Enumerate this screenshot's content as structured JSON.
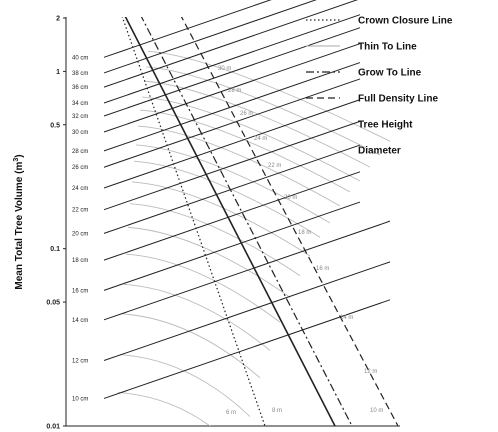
{
  "chart_data": {
    "type": "line",
    "title": "",
    "ylabel": "Mean Total Tree Volume (m³)",
    "ylabel_main": "Mean Total Tree Volume (m",
    "ylabel_sup": "3",
    "ylabel_close": ")",
    "yscale": "log",
    "ylim": [
      0.01,
      2
    ],
    "y_ticks": [
      {
        "value": 2,
        "label": "2"
      },
      {
        "value": 1,
        "label": "1"
      },
      {
        "value": 0.5,
        "label": "0.5"
      },
      {
        "value": 0.1,
        "label": "0.1"
      },
      {
        "value": 0.05,
        "label": "0.05"
      },
      {
        "value": 0.01,
        "label": "0.01"
      }
    ],
    "legend_position": "top-right",
    "legend": [
      {
        "label": "Crown Closure Line",
        "style": "dotted"
      },
      {
        "label": "Thin To Line",
        "style": "solid-light"
      },
      {
        "label": "Grow To Line",
        "style": "dash-dot"
      },
      {
        "label": "Full Density Line",
        "style": "dashed"
      },
      {
        "label": "Tree Height",
        "style": "none"
      },
      {
        "label": "Diameter",
        "style": "none"
      }
    ],
    "diameter_lines": [
      {
        "label": "10 cm",
        "value": 0.0143
      },
      {
        "label": "12 cm",
        "value": 0.0234
      },
      {
        "label": "14 cm",
        "value": 0.0397
      },
      {
        "label": "16 cm",
        "value": 0.0582
      },
      {
        "label": "18 cm",
        "value": 0.0862
      },
      {
        "label": "20 cm",
        "value": 0.122
      },
      {
        "label": "22 cm",
        "value": 0.166
      },
      {
        "label": "24 cm",
        "value": 0.22
      },
      {
        "label": "26 cm",
        "value": 0.288
      },
      {
        "label": "28 cm",
        "value": 0.356
      },
      {
        "label": "30 cm",
        "value": 0.455
      },
      {
        "label": "32 cm",
        "value": 0.56
      },
      {
        "label": "34 cm",
        "value": 0.663
      },
      {
        "label": "36 cm",
        "value": 0.815
      },
      {
        "label": "38 cm",
        "value": 0.98
      },
      {
        "label": "40 cm",
        "value": 1.2
      }
    ],
    "height_labels": [
      "30 m",
      "28 m",
      "26 m",
      "24 m",
      "22 m",
      "20 m",
      "18 m",
      "16 m",
      "14 m",
      "12 m",
      "10 m",
      "8 m",
      "6 m"
    ]
  }
}
